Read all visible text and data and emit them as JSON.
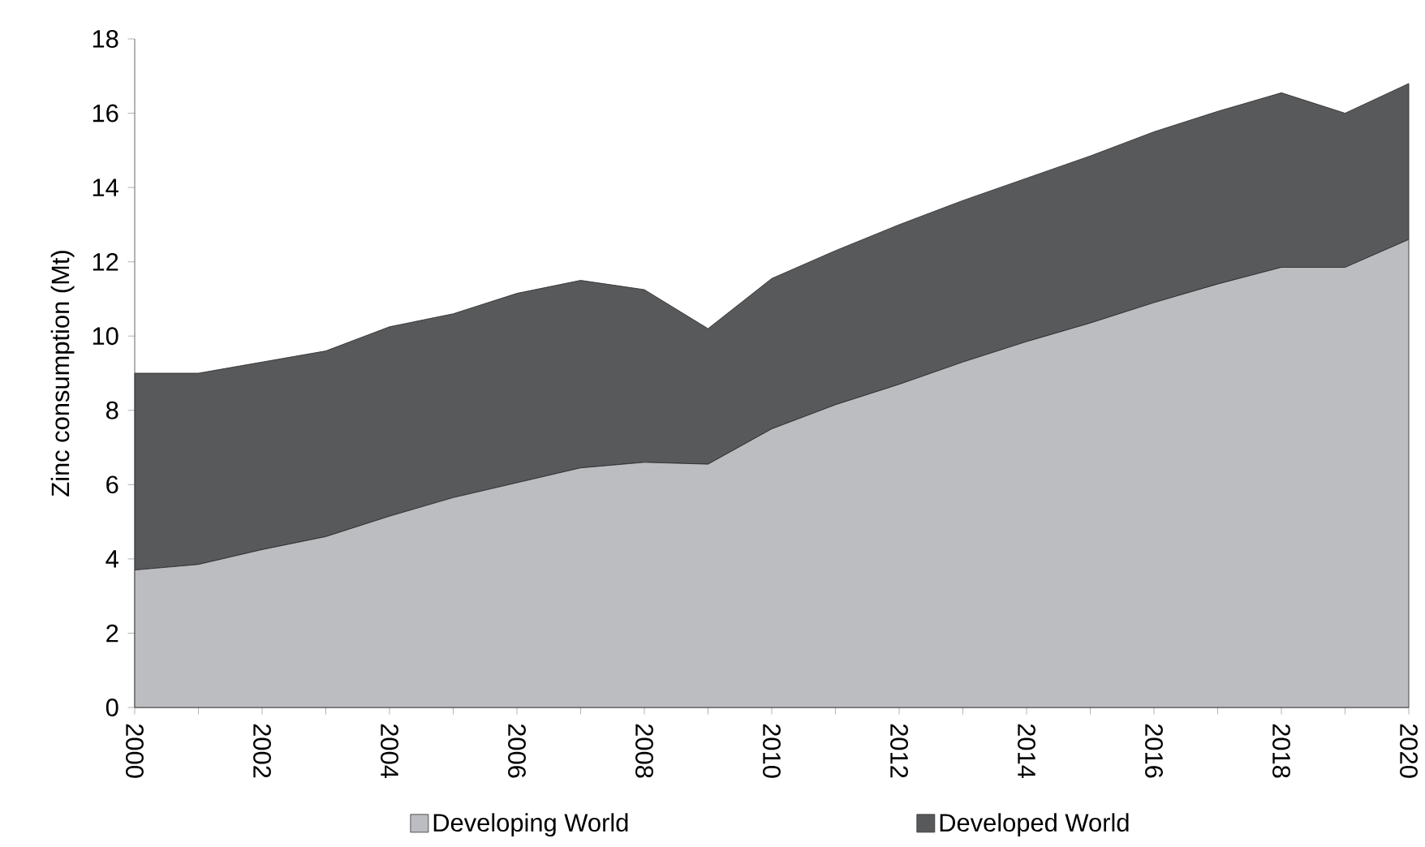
{
  "chart_data": {
    "type": "area",
    "stacked": true,
    "ylabel": "Zinc consumption (Mt)",
    "x": [
      2000,
      2001,
      2002,
      2003,
      2004,
      2005,
      2006,
      2007,
      2008,
      2009,
      2010,
      2011,
      2012,
      2013,
      2014,
      2015,
      2016,
      2017,
      2018,
      2019,
      2020
    ],
    "series": [
      {
        "name": "Developing World",
        "color": "#bcbdc1",
        "values": [
          3.7,
          3.85,
          4.25,
          4.6,
          5.15,
          5.65,
          6.05,
          6.45,
          6.6,
          6.55,
          7.5,
          8.15,
          8.7,
          9.3,
          9.85,
          10.35,
          10.9,
          11.4,
          11.85,
          11.85,
          12.6
        ]
      },
      {
        "name": "Developed World",
        "color": "#58595b",
        "values": [
          5.3,
          5.15,
          5.05,
          5.0,
          5.1,
          4.95,
          5.1,
          5.05,
          4.65,
          3.65,
          4.05,
          4.15,
          4.3,
          4.35,
          4.4,
          4.5,
          4.6,
          4.65,
          4.7,
          4.15,
          4.2
        ]
      }
    ],
    "xlim": [
      2000,
      2020
    ],
    "xticks": [
      2000,
      {
        "value": 2001,
        "label": null
      },
      2002,
      {
        "value": 2003,
        "label": null
      },
      2004,
      {
        "value": 2005,
        "label": null
      },
      2006,
      {
        "value": 2007,
        "label": null
      },
      2008,
      {
        "value": 2009,
        "label": null
      },
      2010,
      {
        "value": 2011,
        "label": null
      },
      2012,
      {
        "value": 2013,
        "label": null
      },
      2014,
      {
        "value": 2015,
        "label": null
      },
      2016,
      {
        "value": 2017,
        "label": null
      },
      2018,
      {
        "value": 2019,
        "label": null
      },
      2020
    ],
    "ylim": [
      0,
      18
    ],
    "yticks": [
      0,
      2,
      4,
      6,
      8,
      10,
      12,
      14,
      16,
      18
    ],
    "grid": false,
    "legend": "bottom"
  }
}
